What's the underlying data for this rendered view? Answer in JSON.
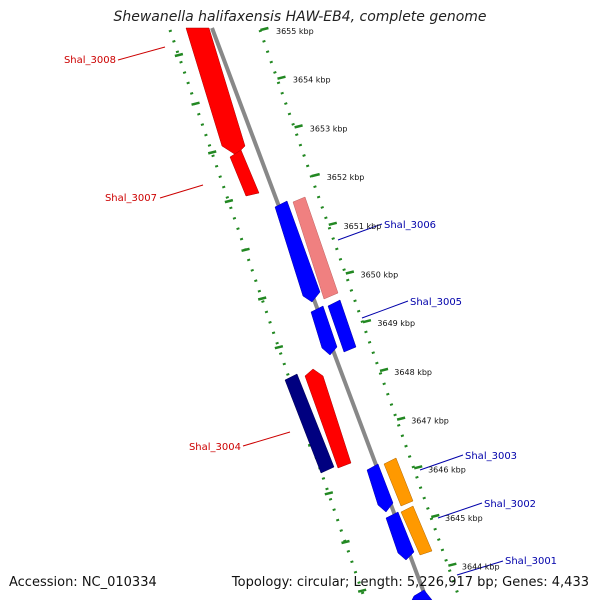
{
  "title": "Shewanella halifaxensis HAW-EB4, complete genome",
  "accession_label": "Accession: NC_010334",
  "summary_label": "Topology: circular; Length: 5,226,917 bp; Genes: 4,433",
  "kbp_ticks": [
    "3655 kbp",
    "3654 kbp",
    "3653 kbp",
    "3652 kbp",
    "3651 kbp",
    "3650 kbp",
    "3649 kbp",
    "3648 kbp",
    "3647 kbp",
    "3646 kbp",
    "3645 kbp",
    "3644 kbp"
  ],
  "genes": [
    {
      "name": "Shal_3008",
      "color": "#cc0000"
    },
    {
      "name": "Shal_3007",
      "color": "#cc0000"
    },
    {
      "name": "Shal_3006",
      "color": "#0000aa"
    },
    {
      "name": "Shal_3005",
      "color": "#0000aa"
    },
    {
      "name": "Shal_3004",
      "color": "#cc0000"
    },
    {
      "name": "Shal_3003",
      "color": "#0000aa"
    },
    {
      "name": "Shal_3002",
      "color": "#0000aa"
    },
    {
      "name": "Shal_3001",
      "color": "#0000aa"
    }
  ],
  "colors": {
    "forward_cds": "#ff0000",
    "reverse_cds": "#0000ff",
    "forward_cds_light": "#f08080",
    "reverse_cds_dark": "#000080",
    "other_feature": "#ff9900",
    "backbone": "#888888",
    "tick": "#228822"
  }
}
